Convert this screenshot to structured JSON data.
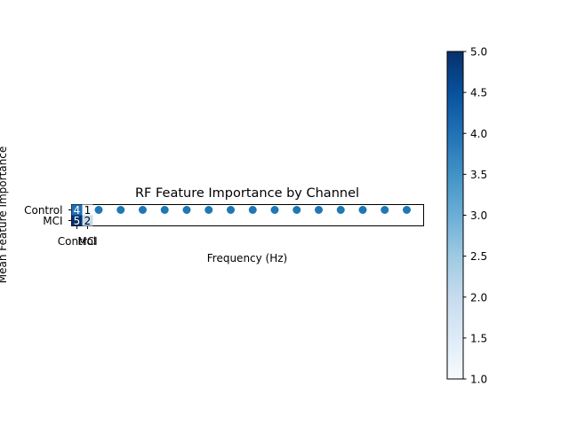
{
  "chart_data": {
    "type": "heatmap",
    "title": "RF Feature Importance by Channel",
    "xlabel": "Frequency (Hz)",
    "ylabel": "Mean Feature Importance",
    "row_labels": [
      "Control",
      "MCI"
    ],
    "col_labels": [
      "Control",
      "MCI"
    ],
    "matrix": [
      [
        4,
        1
      ],
      [
        5,
        2
      ]
    ],
    "colorbar": {
      "min": 1.0,
      "max": 5.0,
      "ticks": [
        "1.0",
        "1.5",
        "2.0",
        "2.5",
        "3.0",
        "3.5",
        "4.0",
        "4.5",
        "5.0"
      ],
      "colormap": "Blues"
    },
    "scatter_overlay": {
      "type": "scatter",
      "count": 15,
      "color": "#1f77b4"
    }
  }
}
